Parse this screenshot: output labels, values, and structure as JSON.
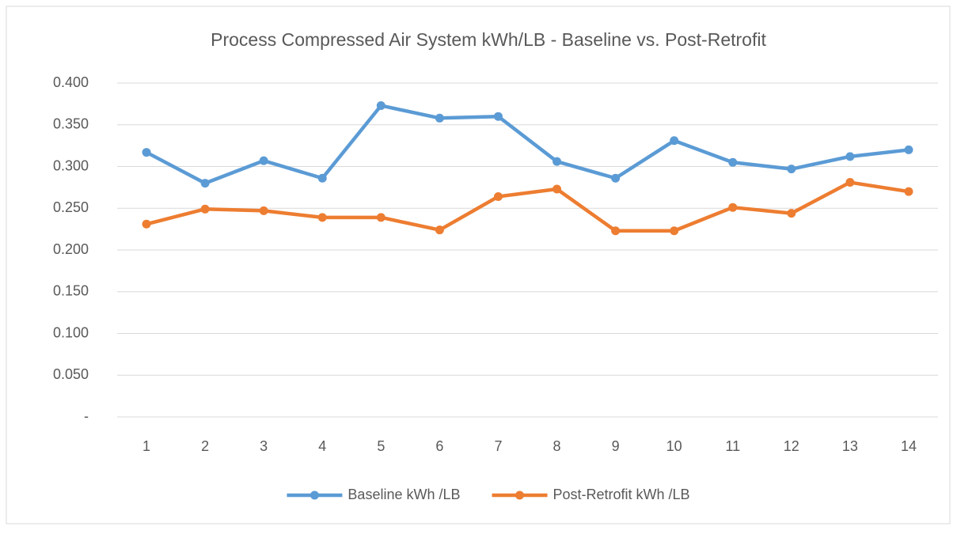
{
  "chart_data": {
    "type": "line",
    "title": "Process Compressed Air System kWh/LB - Baseline vs. Post-Retrofit",
    "categories": [
      "1",
      "2",
      "3",
      "4",
      "5",
      "6",
      "7",
      "8",
      "9",
      "10",
      "11",
      "12",
      "13",
      "14"
    ],
    "series": [
      {
        "name": "Baseline kWh /LB",
        "color": "#5b9bd5",
        "values": [
          0.317,
          0.28,
          0.307,
          0.286,
          0.373,
          0.358,
          0.36,
          0.306,
          0.286,
          0.331,
          0.305,
          0.297,
          0.312,
          0.32
        ]
      },
      {
        "name": "Post-Retrofit kWh /LB",
        "color": "#ed7d31",
        "values": [
          0.231,
          0.249,
          0.247,
          0.239,
          0.239,
          0.224,
          0.264,
          0.273,
          0.223,
          0.223,
          0.251,
          0.244,
          0.281,
          0.27
        ]
      }
    ],
    "ylim": [
      0,
      0.4
    ],
    "yticks": [
      {
        "value": 0,
        "label": "-"
      },
      {
        "value": 0.05,
        "label": "0.050"
      },
      {
        "value": 0.1,
        "label": "0.100"
      },
      {
        "value": 0.15,
        "label": "0.150"
      },
      {
        "value": 0.2,
        "label": "0.200"
      },
      {
        "value": 0.25,
        "label": "0.250"
      },
      {
        "value": 0.3,
        "label": "0.300"
      },
      {
        "value": 0.35,
        "label": "0.350"
      },
      {
        "value": 0.4,
        "label": "0.400"
      }
    ],
    "grid": true,
    "legend": "bottom"
  }
}
